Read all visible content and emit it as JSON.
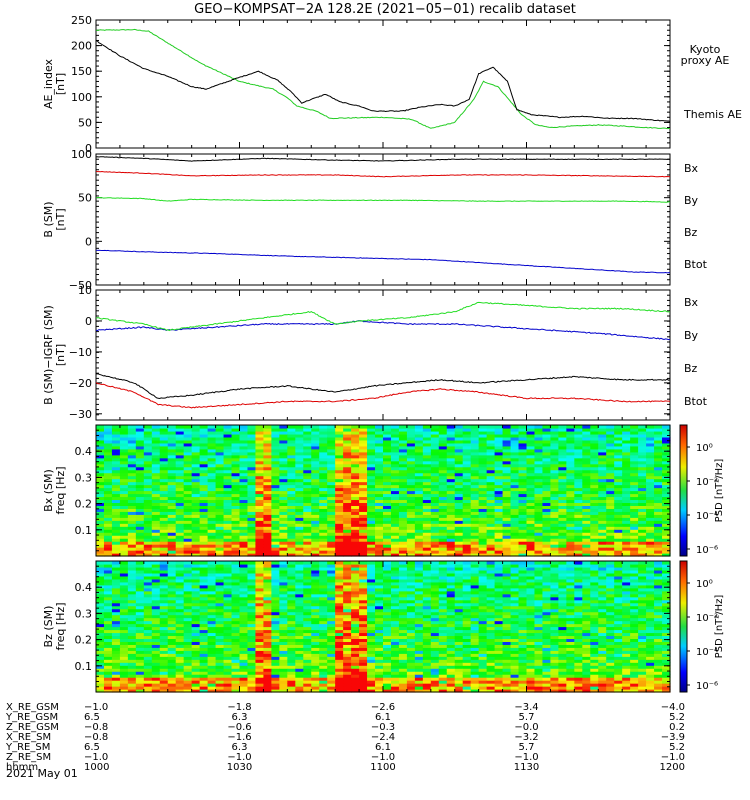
{
  "title": "GEO−KOMPSAT−2A 128.2E (2021−05−01) recalib dataset",
  "colors": {
    "black": "#000000",
    "red": "#dd0000",
    "green": "#22dd22",
    "blue": "#0000cc",
    "kyoto": "#22cc22"
  },
  "chart_data": [
    {
      "type": "line",
      "ylabel_lines": [
        "AE_index",
        "[nT]"
      ],
      "ylim": [
        0,
        250
      ],
      "yticks": [
        "0",
        "50",
        "100",
        "150",
        "200",
        "250"
      ],
      "series": [
        {
          "name": "Kyoto proxy AE",
          "name_lines": [
            "Kyoto",
            "proxy AE"
          ],
          "color": "#22cc22",
          "points": [
            [
              0,
              230
            ],
            [
              8,
              231
            ],
            [
              11,
              228
            ],
            [
              18,
              188
            ],
            [
              22,
              165
            ],
            [
              30,
              130
            ],
            [
              37,
              115
            ],
            [
              40,
              98
            ],
            [
              42,
              82
            ],
            [
              46,
              72
            ],
            [
              49,
              58
            ],
            [
              60,
              60
            ],
            [
              66,
              56
            ],
            [
              70,
              38
            ],
            [
              75,
              50
            ],
            [
              79,
              95
            ],
            [
              81,
              130
            ],
            [
              84,
              120
            ],
            [
              89,
              65
            ],
            [
              92,
              45
            ],
            [
              95,
              40
            ],
            [
              100,
              43
            ],
            [
              105,
              45
            ],
            [
              110,
              43
            ],
            [
              115,
              40
            ],
            [
              120,
              38
            ]
          ]
        },
        {
          "name": "Themis AE",
          "name_lines": [
            "Themis AE"
          ],
          "color": "#000000",
          "points": [
            [
              0,
              210
            ],
            [
              5,
              180
            ],
            [
              10,
              155
            ],
            [
              15,
              140
            ],
            [
              20,
              120
            ],
            [
              23,
              115
            ],
            [
              27,
              128
            ],
            [
              30,
              138
            ],
            [
              34,
              150
            ],
            [
              38,
              132
            ],
            [
              41,
              108
            ],
            [
              43,
              88
            ],
            [
              45,
              95
            ],
            [
              48,
              105
            ],
            [
              51,
              90
            ],
            [
              55,
              82
            ],
            [
              58,
              72
            ],
            [
              64,
              72
            ],
            [
              68,
              80
            ],
            [
              72,
              85
            ],
            [
              75,
              82
            ],
            [
              78,
              95
            ],
            [
              80,
              145
            ],
            [
              83,
              158
            ],
            [
              86,
              130
            ],
            [
              88,
              75
            ],
            [
              91,
              65
            ],
            [
              97,
              60
            ],
            [
              102,
              62
            ],
            [
              107,
              58
            ],
            [
              112,
              58
            ],
            [
              120,
              52
            ]
          ]
        }
      ]
    },
    {
      "type": "line",
      "ylabel_lines": [
        "B (SM)",
        "[nT]"
      ],
      "ylim": [
        -50,
        100
      ],
      "yticks": [
        "−50",
        "0",
        "50",
        "100"
      ],
      "series": [
        {
          "name": "Bx",
          "color": "#0000cc",
          "points": [
            [
              0,
              -10
            ],
            [
              10,
              -12
            ],
            [
              25,
              -14
            ],
            [
              40,
              -17
            ],
            [
              55,
              -19
            ],
            [
              70,
              -21
            ],
            [
              85,
              -26
            ],
            [
              100,
              -31
            ],
            [
              112,
              -35
            ],
            [
              120,
              -36
            ]
          ]
        },
        {
          "name": "By",
          "color": "#22dd22",
          "points": [
            [
              0,
              50
            ],
            [
              10,
              49
            ],
            [
              15,
              46
            ],
            [
              20,
              48
            ],
            [
              35,
              47
            ],
            [
              50,
              47
            ],
            [
              65,
              47
            ],
            [
              80,
              46
            ],
            [
              95,
              46
            ],
            [
              110,
              46
            ],
            [
              120,
              45
            ]
          ]
        },
        {
          "name": "Bz",
          "color": "#dd0000",
          "points": [
            [
              0,
              80
            ],
            [
              10,
              78
            ],
            [
              20,
              75
            ],
            [
              35,
              76
            ],
            [
              50,
              76
            ],
            [
              60,
              74
            ],
            [
              75,
              76
            ],
            [
              90,
              76
            ],
            [
              105,
              75
            ],
            [
              120,
              74
            ]
          ]
        },
        {
          "name": "Btot",
          "color": "#000000",
          "points": [
            [
              0,
              97
            ],
            [
              10,
              95
            ],
            [
              20,
              92
            ],
            [
              35,
              95
            ],
            [
              50,
              93
            ],
            [
              60,
              92
            ],
            [
              75,
              94
            ],
            [
              90,
              94
            ],
            [
              105,
              94
            ],
            [
              120,
              94
            ]
          ]
        }
      ]
    },
    {
      "type": "line",
      "ylabel_lines": [
        "B (SM)−IGRF (SM)",
        "[nT]"
      ],
      "ylim": [
        -32,
        10
      ],
      "yticks": [
        "−30",
        "−20",
        "−10",
        "0",
        "10"
      ],
      "series": [
        {
          "name": "Bx",
          "color": "#0000cc",
          "points": [
            [
              0,
              -3
            ],
            [
              10,
              -2
            ],
            [
              15,
              -3
            ],
            [
              25,
              -2
            ],
            [
              35,
              -1
            ],
            [
              50,
              -1
            ],
            [
              55,
              0
            ],
            [
              65,
              -1
            ],
            [
              75,
              -1
            ],
            [
              85,
              -2
            ],
            [
              95,
              -3
            ],
            [
              105,
              -4
            ],
            [
              120,
              -6
            ]
          ]
        },
        {
          "name": "By",
          "color": "#22dd22",
          "points": [
            [
              0,
              1
            ],
            [
              10,
              -1
            ],
            [
              15,
              -3
            ],
            [
              25,
              -1
            ],
            [
              35,
              1
            ],
            [
              45,
              3
            ],
            [
              50,
              -1
            ],
            [
              55,
              0
            ],
            [
              65,
              1
            ],
            [
              75,
              3
            ],
            [
              80,
              6
            ],
            [
              90,
              5
            ],
            [
              100,
              4
            ],
            [
              110,
              4
            ],
            [
              120,
              3
            ]
          ]
        },
        {
          "name": "Bz",
          "color": "#dd0000",
          "points": [
            [
              0,
              -20
            ],
            [
              8,
              -23
            ],
            [
              13,
              -27
            ],
            [
              20,
              -28
            ],
            [
              30,
              -27
            ],
            [
              40,
              -26
            ],
            [
              50,
              -26
            ],
            [
              58,
              -25
            ],
            [
              65,
              -23
            ],
            [
              72,
              -22
            ],
            [
              80,
              -23
            ],
            [
              90,
              -25
            ],
            [
              100,
              -25
            ],
            [
              110,
              -26
            ],
            [
              120,
              -26
            ]
          ]
        },
        {
          "name": "Btot",
          "color": "#000000",
          "points": [
            [
              0,
              -17
            ],
            [
              8,
              -20
            ],
            [
              13,
              -25
            ],
            [
              20,
              -24
            ],
            [
              30,
              -22
            ],
            [
              40,
              -21
            ],
            [
              50,
              -23
            ],
            [
              58,
              -21
            ],
            [
              65,
              -20
            ],
            [
              72,
              -19
            ],
            [
              80,
              -20
            ],
            [
              90,
              -19
            ],
            [
              100,
              -18
            ],
            [
              110,
              -19
            ],
            [
              120,
              -19
            ]
          ]
        }
      ]
    },
    {
      "type": "heatmap",
      "ylabel_lines": [
        "Bx (SM)",
        "freq [Hz]"
      ],
      "ylim": [
        0,
        0.5
      ],
      "yticks": [
        "0.1",
        "0.2",
        "0.3",
        "0.4"
      ],
      "colorbar_label": "PSD [nT²/Hz]",
      "colorbar_ticks": [
        "10⁰",
        "10⁻²",
        "10⁻⁴",
        "10⁻⁶"
      ],
      "hot_columns": [
        [
          33,
          40
        ],
        [
          58,
          73
        ]
      ]
    },
    {
      "type": "heatmap",
      "ylabel_lines": [
        "Bz (SM)",
        "freq [Hz]"
      ],
      "ylim": [
        0,
        0.5
      ],
      "yticks": [
        "0.1",
        "0.2",
        "0.3",
        "0.4"
      ],
      "colorbar_label": "PSD [nT²/Hz]",
      "colorbar_ticks": [
        "10⁰",
        "10⁻²",
        "10⁻⁴",
        "10⁻⁶"
      ],
      "hot_columns": [
        [
          33,
          40
        ],
        [
          58,
          73
        ]
      ]
    }
  ],
  "x_axis": {
    "xlim_minutes": [
      0,
      120
    ],
    "tick_minutes": [
      0,
      30,
      60,
      90,
      120
    ],
    "row_labels": [
      "X_RE_GSM",
      "Y_RE_GSM",
      "Z_RE_GSM",
      "X_RE_SM",
      "Y_RE_SM",
      "Z_RE_SM",
      "hhmm"
    ],
    "columns": [
      [
        "−1.0",
        "6.5",
        "−0.8",
        "−0.8",
        "6.5",
        "−1.0",
        "1000"
      ],
      [
        "−1.8",
        "6.3",
        "−0.6",
        "−1.6",
        "6.3",
        "−1.0",
        "1030"
      ],
      [
        "−2.6",
        "6.1",
        "−0.3",
        "−2.4",
        "6.1",
        "−1.0",
        "1100"
      ],
      [
        "−3.4",
        "5.7",
        "−0.0",
        "−3.2",
        "5.7",
        "−1.0",
        "1130"
      ],
      [
        "−4.0",
        "5.2",
        "0.2",
        "−3.9",
        "5.2",
        "−1.0",
        "1200"
      ]
    ],
    "date": "2021 May 01"
  }
}
